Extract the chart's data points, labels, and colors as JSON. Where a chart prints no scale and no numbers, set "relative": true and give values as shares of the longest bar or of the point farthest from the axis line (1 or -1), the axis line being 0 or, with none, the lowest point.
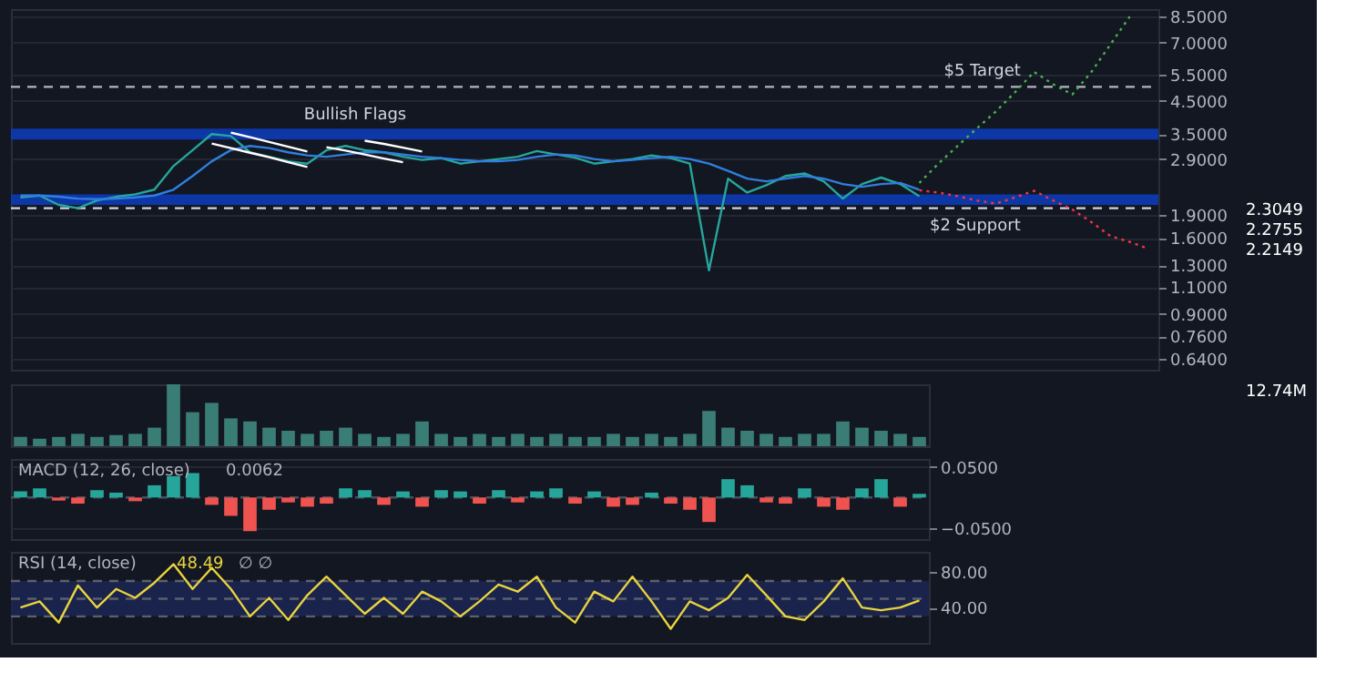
{
  "chart_data": [
    {
      "type": "line",
      "log": "y",
      "categories": [
        null,
        null,
        null,
        null,
        null,
        null,
        null,
        null,
        null,
        null,
        null,
        null,
        null,
        null,
        null,
        null,
        null,
        null,
        null,
        null,
        null,
        null,
        null,
        null,
        null,
        null,
        null,
        null,
        null,
        null,
        null,
        null,
        null,
        null,
        null,
        null,
        null,
        null,
        null,
        null,
        null,
        null,
        null,
        null,
        null,
        null,
        null,
        null,
        null,
        null,
        null,
        null,
        null,
        null,
        null,
        null,
        null,
        null,
        null,
        null
      ],
      "ylim": [
        0.59,
        9.0
      ],
      "yticks": [
        {
          "value": 0.64,
          "label": "0.6400"
        },
        {
          "value": 0.76,
          "label": "0.7600"
        },
        {
          "value": 0.9,
          "label": "0.9000"
        },
        {
          "value": 1.1,
          "label": "1.1000"
        },
        {
          "value": 1.3,
          "label": "1.3000"
        },
        {
          "value": 1.6,
          "label": "1.6000"
        },
        {
          "value": 1.9,
          "label": "1.9000"
        },
        {
          "value": 2.9,
          "label": "2.9000"
        },
        {
          "value": 3.5,
          "label": "3.5000"
        },
        {
          "value": 4.5,
          "label": "4.5000"
        },
        {
          "value": 5.5,
          "label": "5.5000"
        },
        {
          "value": 7.0,
          "label": "7.0000"
        },
        {
          "value": 8.5,
          "label": "8.5000"
        }
      ],
      "tick_labels": "y",
      "grid": "y",
      "bands": [
        {
          "axis": "y",
          "from": 3.36,
          "to": 3.65,
          "color": "#0d3bb5"
        },
        {
          "axis": "y",
          "from": 2.05,
          "to": 2.22,
          "color": "#0d3bb5"
        }
      ],
      "ref_lines": [
        {
          "axis": "y",
          "value": 5.0,
          "label": "$5 Target",
          "color": "#b2b5be",
          "line_style": "dashed"
        },
        {
          "axis": "y",
          "value": 2.0,
          "label": "$2 Support",
          "color": "#d1d4dc",
          "line_style": "dashed"
        }
      ],
      "annotations": [
        "Bullish Flags",
        "2.3049",
        "2.2755",
        "2.2149"
      ],
      "series": [
        {
          "color": "#26a69a",
          "values": [
            2.17,
            2.2,
            2.05,
            2.0,
            2.12,
            2.18,
            2.22,
            2.3,
            2.75,
            3.1,
            3.5,
            3.45,
            3.05,
            2.95,
            2.85,
            2.8,
            3.1,
            3.2,
            3.1,
            3.05,
            2.95,
            2.88,
            2.92,
            2.8,
            2.85,
            2.9,
            2.95,
            3.08,
            3.0,
            2.93,
            2.8,
            2.85,
            2.9,
            2.98,
            2.92,
            2.8,
            1.25,
            2.5,
            2.25,
            2.38,
            2.55,
            2.6,
            2.45,
            2.15,
            2.4,
            2.52,
            2.4,
            2.19,
            null,
            null,
            null,
            null,
            null,
            null,
            null,
            null,
            null,
            null,
            null,
            null
          ]
        },
        {
          "color": "#2f7fe0",
          "values": [
            2.2,
            2.2,
            2.18,
            2.15,
            2.14,
            2.15,
            2.17,
            2.2,
            2.3,
            2.55,
            2.85,
            3.1,
            3.2,
            3.15,
            3.05,
            2.98,
            2.95,
            3.0,
            3.05,
            3.05,
            3.0,
            2.95,
            2.92,
            2.88,
            2.85,
            2.85,
            2.88,
            2.95,
            3.0,
            2.98,
            2.9,
            2.85,
            2.88,
            2.92,
            2.95,
            2.9,
            2.8,
            2.65,
            2.5,
            2.45,
            2.5,
            2.55,
            2.5,
            2.4,
            2.35,
            2.4,
            2.42,
            2.3,
            null,
            null,
            null,
            null,
            null,
            null,
            null,
            null,
            null,
            null,
            null,
            null
          ]
        },
        {
          "color": "#ffffff",
          "values": [
            null,
            null,
            null,
            null,
            null,
            null,
            null,
            null,
            null,
            null,
            null,
            3.54,
            3.42,
            3.3,
            3.18,
            3.07,
            null,
            null,
            null,
            null,
            null,
            null,
            null,
            null,
            null,
            null,
            null,
            null,
            null,
            null,
            null,
            null,
            null,
            null,
            null,
            null,
            null,
            null,
            null,
            null,
            null,
            null,
            null,
            null,
            null,
            null,
            null,
            null,
            null,
            null,
            null,
            null,
            null,
            null,
            null,
            null,
            null,
            null,
            null,
            null
          ]
        },
        {
          "color": "#ffffff",
          "values": [
            null,
            null,
            null,
            null,
            null,
            null,
            null,
            null,
            null,
            null,
            3.26,
            3.15,
            3.04,
            2.94,
            2.83,
            2.73,
            null,
            null,
            null,
            null,
            null,
            null,
            null,
            null,
            null,
            null,
            null,
            null,
            null,
            null,
            null,
            null,
            null,
            null,
            null,
            null,
            null,
            null,
            null,
            null,
            null,
            null,
            null,
            null,
            null,
            null,
            null,
            null,
            null,
            null,
            null,
            null,
            null,
            null,
            null,
            null,
            null,
            null,
            null,
            null
          ]
        },
        {
          "color": "#ffffff",
          "values": [
            null,
            null,
            null,
            null,
            null,
            null,
            null,
            null,
            null,
            null,
            null,
            null,
            null,
            null,
            null,
            null,
            null,
            null,
            3.33,
            3.25,
            3.16,
            3.07,
            null,
            null,
            null,
            null,
            null,
            null,
            null,
            null,
            null,
            null,
            null,
            null,
            null,
            null,
            null,
            null,
            null,
            null,
            null,
            null,
            null,
            null,
            null,
            null,
            null,
            null,
            null,
            null,
            null,
            null,
            null,
            null,
            null,
            null,
            null,
            null,
            null,
            null
          ]
        },
        {
          "color": "#ffffff",
          "values": [
            null,
            null,
            null,
            null,
            null,
            null,
            null,
            null,
            null,
            null,
            null,
            null,
            null,
            null,
            null,
            null,
            3.17,
            3.09,
            3.0,
            2.91,
            2.83,
            null,
            null,
            null,
            null,
            null,
            null,
            null,
            null,
            null,
            null,
            null,
            null,
            null,
            null,
            null,
            null,
            null,
            null,
            null,
            null,
            null,
            null,
            null,
            null,
            null,
            null,
            null,
            null,
            null,
            null,
            null,
            null,
            null,
            null,
            null,
            null,
            null,
            null,
            null
          ]
        },
        {
          "color": "#4caf50",
          "line_style": "dotted",
          "values": [
            null,
            null,
            null,
            null,
            null,
            null,
            null,
            null,
            null,
            null,
            null,
            null,
            null,
            null,
            null,
            null,
            null,
            null,
            null,
            null,
            null,
            null,
            null,
            null,
            null,
            null,
            null,
            null,
            null,
            null,
            null,
            null,
            null,
            null,
            null,
            null,
            null,
            null,
            null,
            null,
            null,
            null,
            null,
            null,
            null,
            null,
            null,
            2.42,
            2.8,
            3.2,
            3.65,
            4.15,
            4.8,
            5.6,
            5.1,
            4.72,
            5.6,
            6.9,
            8.5,
            null
          ]
        },
        {
          "color": "#f23645",
          "line_style": "dotted",
          "values": [
            null,
            null,
            null,
            null,
            null,
            null,
            null,
            null,
            null,
            null,
            null,
            null,
            null,
            null,
            null,
            null,
            null,
            null,
            null,
            null,
            null,
            null,
            null,
            null,
            null,
            null,
            null,
            null,
            null,
            null,
            null,
            null,
            null,
            null,
            null,
            null,
            null,
            null,
            null,
            null,
            null,
            null,
            null,
            null,
            null,
            null,
            null,
            2.29,
            2.25,
            2.19,
            2.12,
            2.07,
            2.17,
            2.28,
            2.12,
            1.98,
            1.8,
            1.62,
            1.55,
            1.47
          ]
        }
      ]
    },
    {
      "type": "bar",
      "relative": true,
      "tick_labels": false,
      "color": "#3a7d77",
      "annotations": [
        "12.74M"
      ],
      "categories": [
        null,
        null,
        null,
        null,
        null,
        null,
        null,
        null,
        null,
        null,
        null,
        null,
        null,
        null,
        null,
        null,
        null,
        null,
        null,
        null,
        null,
        null,
        null,
        null,
        null,
        null,
        null,
        null,
        null,
        null,
        null,
        null,
        null,
        null,
        null,
        null,
        null,
        null,
        null,
        null,
        null,
        null,
        null,
        null,
        null,
        null,
        null,
        null
      ],
      "values": [
        0.15,
        0.12,
        0.15,
        0.2,
        0.15,
        0.18,
        0.2,
        0.3,
        1.0,
        0.55,
        0.7,
        0.45,
        0.4,
        0.3,
        0.25,
        0.2,
        0.25,
        0.3,
        0.2,
        0.15,
        0.2,
        0.4,
        0.2,
        0.15,
        0.2,
        0.15,
        0.2,
        0.15,
        0.2,
        0.15,
        0.15,
        0.2,
        0.15,
        0.2,
        0.15,
        0.2,
        0.57,
        0.3,
        0.25,
        0.2,
        0.15,
        0.2,
        0.2,
        0.4,
        0.3,
        0.25,
        0.2,
        0.15
      ]
    },
    {
      "type": "bar",
      "title": "MACD (12, 26, close)",
      "annotations": [
        "0.0062"
      ],
      "ylim": [
        -0.068,
        0.063
      ],
      "yticks": [
        {
          "value": 0.05,
          "label": "0.0500"
        },
        {
          "value": -0.05,
          "label": "−0.0500"
        }
      ],
      "tick_labels": "y",
      "grid": "y",
      "ref_lines": [
        {
          "axis": "y",
          "value": 0,
          "color": "#4a4e59",
          "line_style": "dashed"
        }
      ],
      "categories": [
        null,
        null,
        null,
        null,
        null,
        null,
        null,
        null,
        null,
        null,
        null,
        null,
        null,
        null,
        null,
        null,
        null,
        null,
        null,
        null,
        null,
        null,
        null,
        null,
        null,
        null,
        null,
        null,
        null,
        null,
        null,
        null,
        null,
        null,
        null,
        null,
        null,
        null,
        null,
        null,
        null,
        null,
        null,
        null,
        null,
        null,
        null,
        null
      ],
      "values": [
        0.01,
        0.015,
        -0.005,
        -0.01,
        0.012,
        0.008,
        -0.006,
        0.02,
        0.035,
        0.04,
        -0.012,
        -0.03,
        -0.055,
        -0.02,
        -0.008,
        -0.015,
        -0.01,
        0.015,
        0.012,
        -0.012,
        0.01,
        -0.015,
        0.012,
        0.01,
        -0.01,
        0.012,
        -0.008,
        0.01,
        0.015,
        -0.01,
        0.01,
        -0.015,
        -0.012,
        0.008,
        -0.01,
        -0.02,
        -0.04,
        0.03,
        0.02,
        -0.008,
        -0.01,
        0.015,
        -0.015,
        -0.02,
        0.015,
        0.03,
        -0.015,
        0.006
      ],
      "colors": [
        "#26a69a",
        "#26a69a",
        "#ef5350",
        "#ef5350",
        "#26a69a",
        "#26a69a",
        "#ef5350",
        "#26a69a",
        "#26a69a",
        "#26a69a",
        "#ef5350",
        "#ef5350",
        "#ef5350",
        "#ef5350",
        "#ef5350",
        "#ef5350",
        "#ef5350",
        "#26a69a",
        "#26a69a",
        "#ef5350",
        "#26a69a",
        "#ef5350",
        "#26a69a",
        "#26a69a",
        "#ef5350",
        "#26a69a",
        "#ef5350",
        "#26a69a",
        "#26a69a",
        "#ef5350",
        "#26a69a",
        "#ef5350",
        "#ef5350",
        "#26a69a",
        "#ef5350",
        "#ef5350",
        "#ef5350",
        "#26a69a",
        "#26a69a",
        "#ef5350",
        "#ef5350",
        "#26a69a",
        "#ef5350",
        "#ef5350",
        "#26a69a",
        "#26a69a",
        "#ef5350",
        "#26a69a"
      ]
    },
    {
      "type": "line",
      "title": "RSI (14, close)",
      "annotations": [
        "48.49",
        "∅ ∅"
      ],
      "ylim": [
        0,
        103
      ],
      "yticks": [
        {
          "value": 80,
          "label": "80.00"
        },
        {
          "value": 40,
          "label": "40.00"
        }
      ],
      "tick_labels": "y",
      "color": "#e8d33f",
      "bands": [
        {
          "axis": "y",
          "from": 30,
          "to": 70,
          "color": "#1c2550"
        }
      ],
      "ref_lines": [
        {
          "axis": "y",
          "value": 70,
          "color": "#5d606b",
          "line_style": "dashed"
        },
        {
          "axis": "y",
          "value": 50,
          "color": "#5d606b",
          "line_style": "dashed"
        },
        {
          "axis": "y",
          "value": 30,
          "color": "#5d606b",
          "line_style": "dashed"
        }
      ],
      "categories": [
        null,
        null,
        null,
        null,
        null,
        null,
        null,
        null,
        null,
        null,
        null,
        null,
        null,
        null,
        null,
        null,
        null,
        null,
        null,
        null,
        null,
        null,
        null,
        null,
        null,
        null,
        null,
        null,
        null,
        null,
        null,
        null,
        null,
        null,
        null,
        null,
        null,
        null,
        null,
        null,
        null,
        null,
        null,
        null,
        null,
        null,
        null,
        null
      ],
      "values": [
        40,
        47,
        23,
        65,
        40,
        61,
        51,
        68,
        89,
        61,
        85,
        61,
        30,
        51,
        26,
        54,
        75,
        54,
        33,
        51,
        33,
        58,
        47,
        30,
        47,
        66,
        58,
        75,
        40,
        23,
        58,
        47,
        75,
        47,
        16,
        47,
        37,
        51,
        77,
        54,
        30,
        26,
        47,
        73,
        40,
        37,
        40,
        48
      ]
    }
  ]
}
